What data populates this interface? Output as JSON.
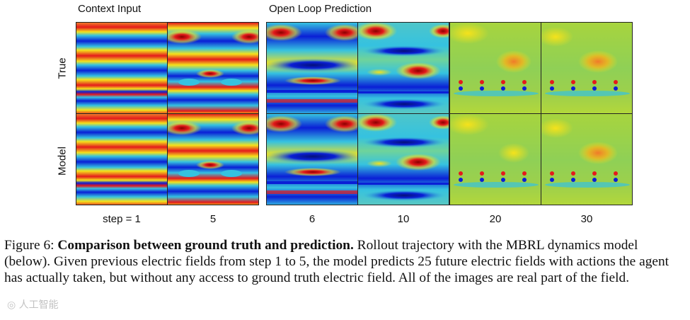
{
  "figure": {
    "group_titles": {
      "context": "Context Input",
      "prediction": "Open Loop Prediction"
    },
    "row_labels": [
      "True",
      "Model"
    ],
    "step_labels": [
      "step = 1",
      "5",
      "6",
      "10",
      "20",
      "30"
    ],
    "colormap": "jet",
    "colors": {
      "dark_red": "#8b0000",
      "red": "#e41a1c",
      "yellow": "#f5e21b",
      "green": "#9fd04a",
      "cyan": "#35c2e0",
      "blue": "#0a1fd6",
      "dark_blue": "#05107a"
    }
  },
  "caption": {
    "label": "Figure 6:",
    "bold_title": "Comparison between ground truth and prediction.",
    "text": "Rollout trajectory with the MBRL dynamics model (below). Given previous electric fields from step 1 to 5, the model predicts 25 future electric fields with actions the agent has actually taken, but without any access to ground truth electric field. All of the images are real part of the field."
  },
  "watermark": "◎ 人工智能"
}
